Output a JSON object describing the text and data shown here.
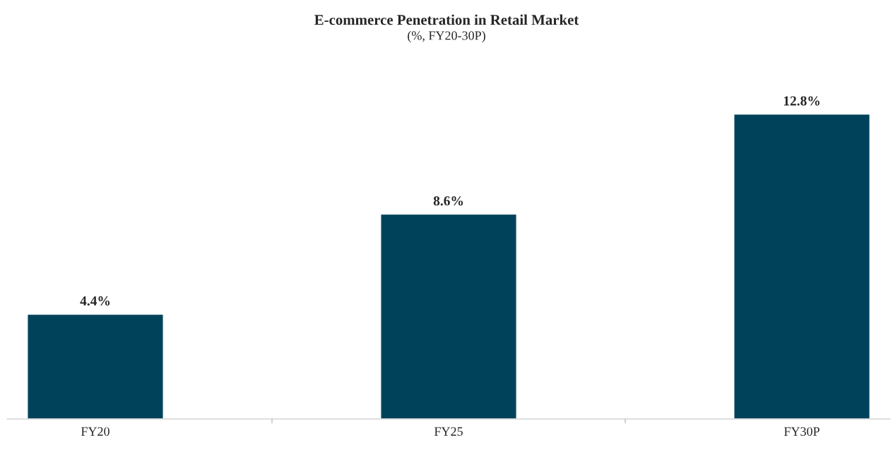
{
  "chart_data": {
    "type": "bar",
    "title": "E-commerce Penetration in Retail Market",
    "subtitle": "(%, FY20-30P)",
    "categories": [
      "FY20",
      "FY25",
      "FY30P"
    ],
    "values": [
      4.4,
      8.6,
      12.8
    ],
    "value_labels": [
      "4.4%",
      "8.6%",
      "12.8%"
    ],
    "color": "#00425a",
    "tick_labels": "x",
    "grid": false,
    "legend": false
  }
}
